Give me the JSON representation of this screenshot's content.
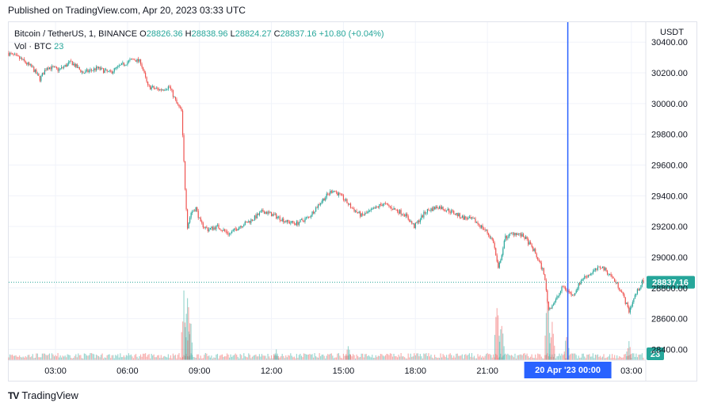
{
  "header": {
    "published": "Published on TradingView.com, Apr 20, 2023 03:33 UTC"
  },
  "legend": {
    "symbol": "Bitcoin / TetherUS, 1, BINANCE",
    "o_label": "O",
    "o": "28826.36",
    "h_label": "H",
    "h": "28838.96",
    "l_label": "L",
    "l": "28824.27",
    "c_label": "C",
    "c": "28837.16",
    "change": "+10.80 (+0.04%)",
    "vol_label": "Vol · BTC",
    "vol_value": "23"
  },
  "footer": {
    "brand": "TradingView",
    "logo": "TV"
  },
  "colors": {
    "up": "#26a69a",
    "down": "#ef5350",
    "crosshair": "#2962ff",
    "label": "#2962ff"
  },
  "chart_data": {
    "type": "candlestick",
    "currency": "USDT",
    "y_ticks": [
      30400,
      30200,
      30000,
      29800,
      29600,
      29400,
      29200,
      29000,
      28800,
      28600,
      28400
    ],
    "y_tick_labels": [
      "30400.00",
      "30200.00",
      "30000.00",
      "29800.00",
      "29600.00",
      "29400.00",
      "29200.00",
      "29000.00",
      "28800.00",
      "28600.00",
      "28400.00"
    ],
    "ylim": [
      28330,
      30530
    ],
    "x_ticks": [
      "03:00",
      "06:00",
      "09:00",
      "12:00",
      "15:00",
      "18:00",
      "21:00",
      "03:00"
    ],
    "x_tick_hours": [
      3,
      6,
      9,
      12,
      15,
      18,
      21,
      27
    ],
    "xlim_hours": [
      1.05,
      27.6
    ],
    "crosshair_hour": 24.35,
    "crosshair_label": "20 Apr '23   00:00",
    "last_price": 28837.16,
    "last_price_label": "28837.16",
    "last_volume_label": "23",
    "price_path": [
      [
        1.05,
        30330
      ],
      [
        1.6,
        30290
      ],
      [
        2.1,
        30230
      ],
      [
        2.4,
        30160
      ],
      [
        2.7,
        30240
      ],
      [
        3.2,
        30220
      ],
      [
        3.7,
        30270
      ],
      [
        4.2,
        30200
      ],
      [
        4.8,
        30230
      ],
      [
        5.3,
        30200
      ],
      [
        5.8,
        30250
      ],
      [
        6.3,
        30290
      ],
      [
        6.6,
        30270
      ],
      [
        6.9,
        30110
      ],
      [
        7.4,
        30090
      ],
      [
        7.8,
        30110
      ],
      [
        8.1,
        30000
      ],
      [
        8.3,
        29950
      ],
      [
        8.45,
        29450
      ],
      [
        8.55,
        29200
      ],
      [
        8.7,
        29290
      ],
      [
        8.9,
        29320
      ],
      [
        9.1,
        29220
      ],
      [
        9.4,
        29180
      ],
      [
        9.8,
        29200
      ],
      [
        10.3,
        29150
      ],
      [
        10.7,
        29200
      ],
      [
        11.2,
        29240
      ],
      [
        11.7,
        29300
      ],
      [
        12.2,
        29270
      ],
      [
        12.7,
        29230
      ],
      [
        13.1,
        29220
      ],
      [
        13.6,
        29260
      ],
      [
        14.1,
        29360
      ],
      [
        14.6,
        29440
      ],
      [
        15.0,
        29390
      ],
      [
        15.4,
        29320
      ],
      [
        15.8,
        29270
      ],
      [
        16.2,
        29300
      ],
      [
        16.7,
        29350
      ],
      [
        17.2,
        29310
      ],
      [
        17.6,
        29280
      ],
      [
        18.0,
        29200
      ],
      [
        18.5,
        29300
      ],
      [
        19.0,
        29330
      ],
      [
        19.5,
        29300
      ],
      [
        20.0,
        29260
      ],
      [
        20.5,
        29240
      ],
      [
        21.0,
        29170
      ],
      [
        21.3,
        29100
      ],
      [
        21.5,
        28920
      ],
      [
        21.8,
        29130
      ],
      [
        22.2,
        29160
      ],
      [
        22.6,
        29130
      ],
      [
        23.0,
        29040
      ],
      [
        23.4,
        28900
      ],
      [
        23.6,
        28660
      ],
      [
        23.9,
        28720
      ],
      [
        24.2,
        28810
      ],
      [
        24.6,
        28750
      ],
      [
        25.0,
        28860
      ],
      [
        25.4,
        28900
      ],
      [
        25.8,
        28940
      ],
      [
        26.2,
        28880
      ],
      [
        26.6,
        28790
      ],
      [
        26.95,
        28650
      ],
      [
        27.2,
        28750
      ],
      [
        27.5,
        28837.16
      ]
    ],
    "volume_spikes": [
      [
        8.35,
        0.85
      ],
      [
        8.5,
        1.0
      ],
      [
        8.6,
        0.6
      ],
      [
        21.4,
        0.8
      ],
      [
        21.6,
        0.55
      ],
      [
        23.5,
        0.9
      ],
      [
        23.7,
        0.5
      ],
      [
        24.3,
        0.35
      ],
      [
        12.2,
        0.15
      ],
      [
        15.2,
        0.2
      ],
      [
        26.9,
        0.25
      ]
    ]
  }
}
